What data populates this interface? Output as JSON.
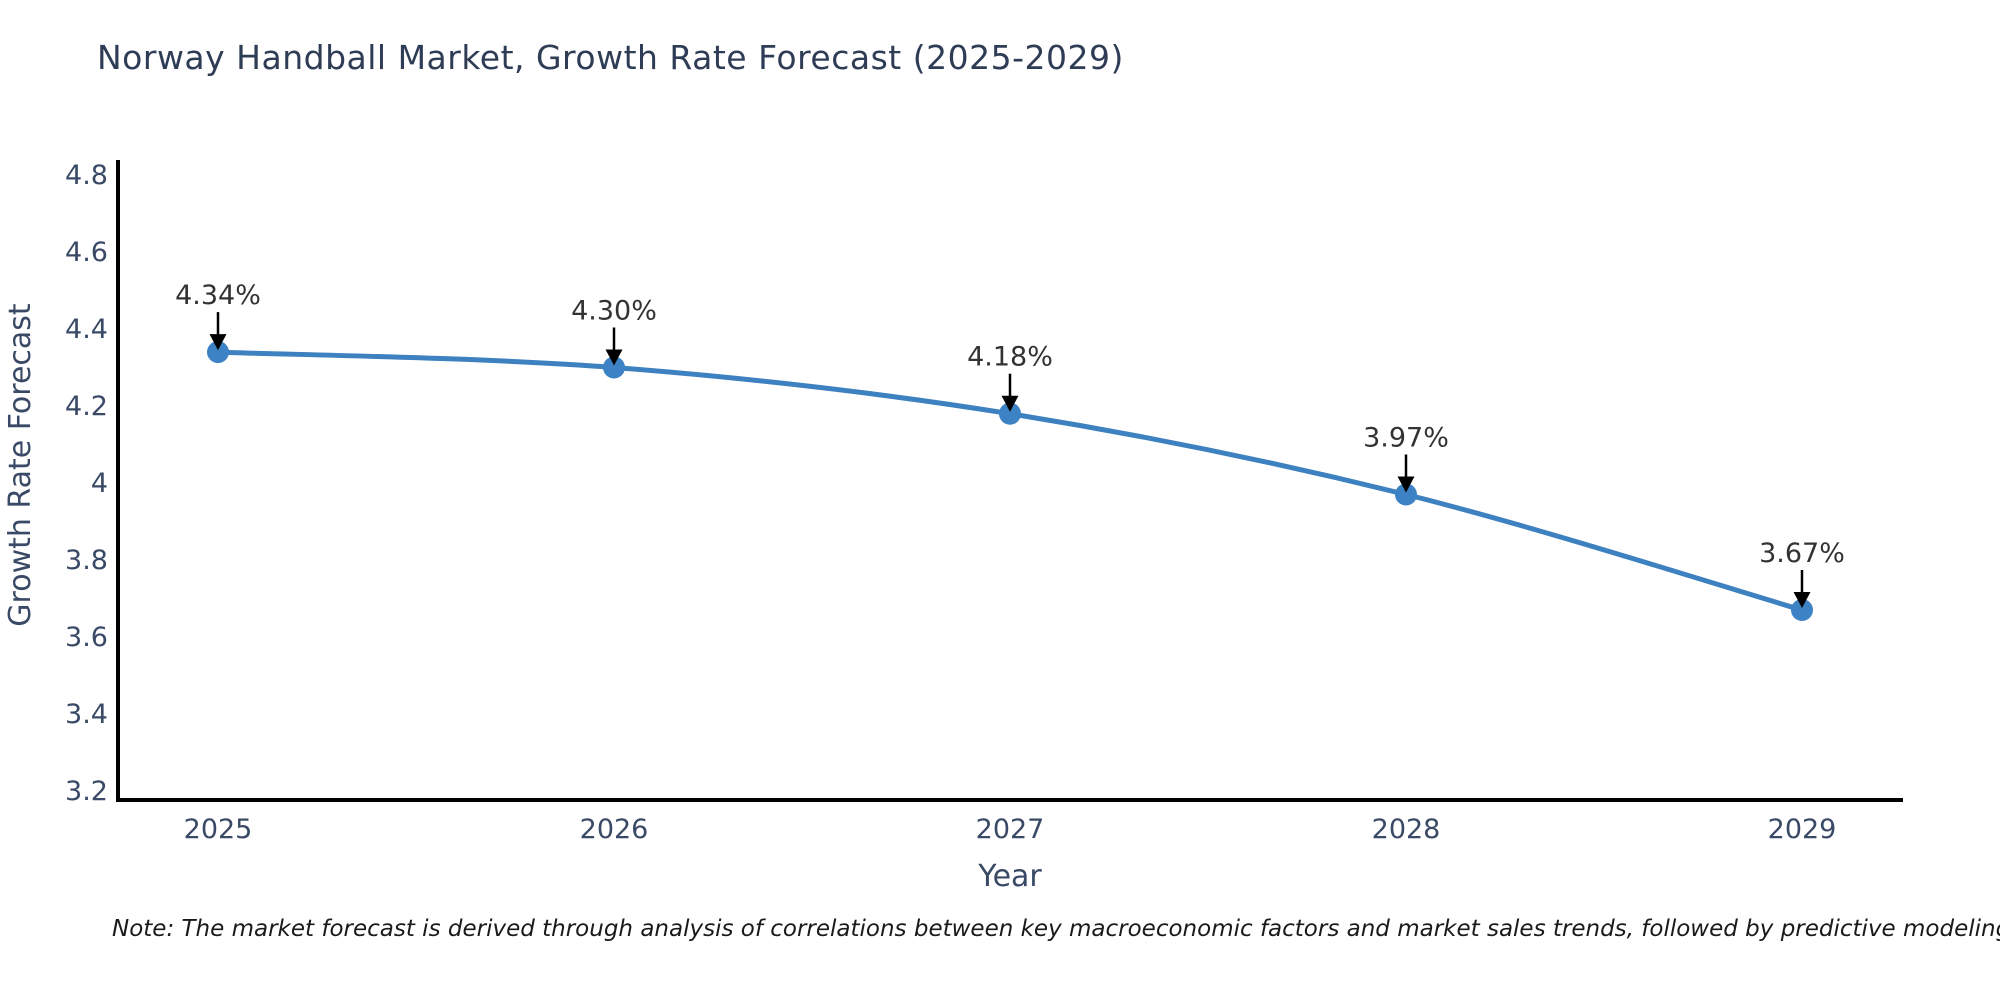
{
  "title": "Norway Handball Market, Growth Rate Forecast (2025-2029)",
  "note": "Note: The market forecast is derived through analysis of correlations between key macroeconomic factors and market sales trends, followed by predictive modeling to project future sales",
  "chart_data": {
    "type": "line",
    "title": "Norway Handball Market, Growth Rate Forecast (2025-2029)",
    "xlabel": "Year",
    "ylabel": "Growth Rate Forecast",
    "x": [
      2025,
      2026,
      2027,
      2028,
      2029
    ],
    "xtick_labels": [
      "2025",
      "2026",
      "2027",
      "2028",
      "2029"
    ],
    "values": [
      4.34,
      4.3,
      4.18,
      3.97,
      3.67
    ],
    "point_labels": [
      "4.34%",
      "4.30%",
      "4.18%",
      "3.97%",
      "3.67%"
    ],
    "yticks": [
      3.2,
      3.4,
      3.6,
      3.8,
      4,
      4.2,
      4.4,
      4.6,
      4.8
    ],
    "ytick_labels": [
      "3.2",
      "3.4",
      "3.6",
      "3.8",
      "4",
      "4.2",
      "4.4",
      "4.6",
      "4.8"
    ],
    "ylim": [
      3.2,
      4.8
    ],
    "grid": false,
    "legend": "none",
    "line_color": "#3e81c0",
    "marker_color": "#3d82c4",
    "annotation_text_color": "#333333",
    "annotation_arrow_color": "#000000",
    "axis_line_color": "#000000",
    "axis_text_color": "#3a4a66"
  },
  "colors": {
    "background": "#ffffff",
    "title_text": "#2e3c55",
    "note_text": "#1a1a1a"
  }
}
